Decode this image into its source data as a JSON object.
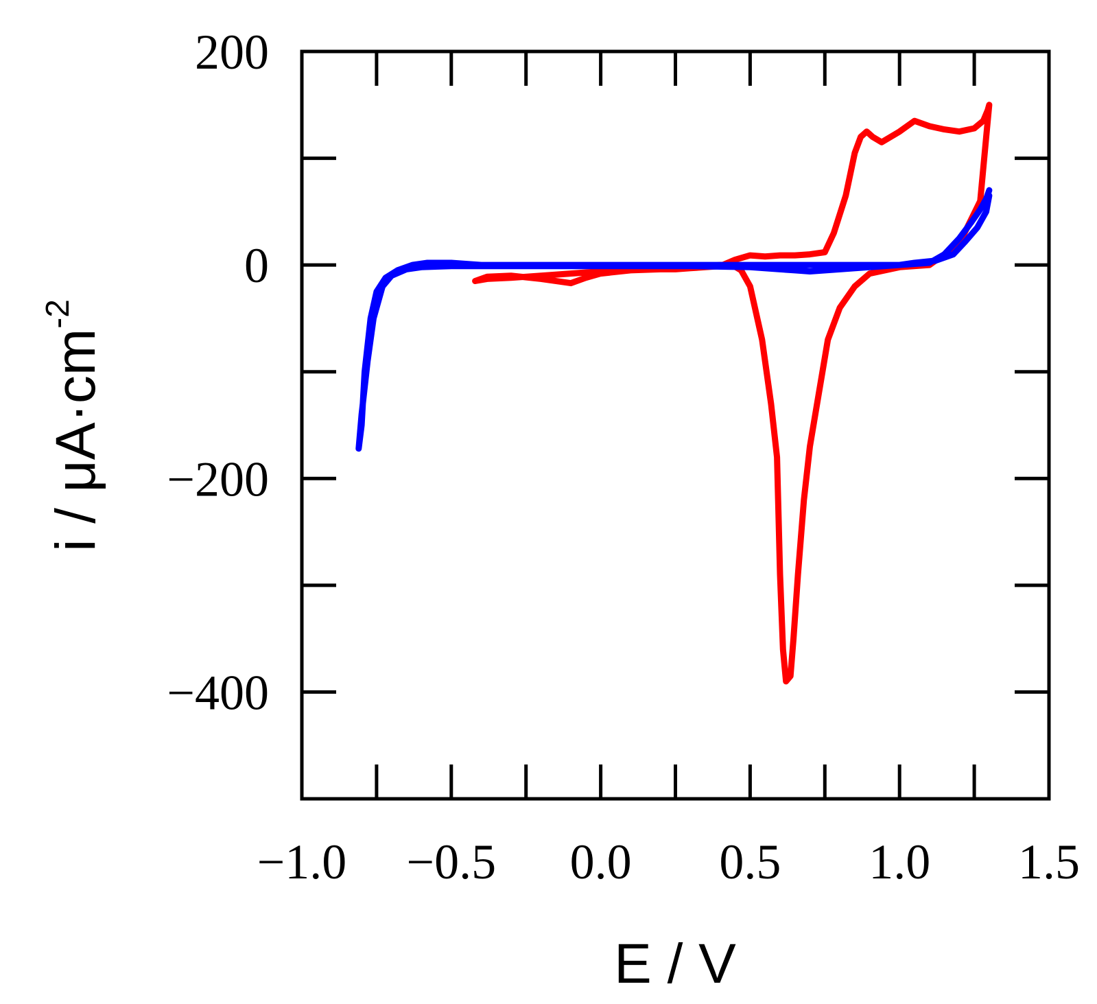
{
  "chart_data": {
    "type": "line",
    "title": "",
    "xlabel": "E / V",
    "ylabel": {
      "main": "i / μA·cm",
      "superscript": "-2"
    },
    "xlim": [
      -1.0,
      1.5
    ],
    "ylim": [
      -500,
      200
    ],
    "x_ticks": [
      -1.0,
      -0.75,
      -0.5,
      -0.25,
      0.0,
      0.25,
      0.5,
      0.75,
      1.0,
      1.25,
      1.5
    ],
    "x_tick_labels": [
      "−1.0",
      "−0.5",
      "0.0",
      "0.5",
      "1.0",
      "1.5"
    ],
    "x_tick_label_values": [
      -1.0,
      -0.5,
      0.0,
      0.5,
      1.0,
      1.5
    ],
    "y_ticks": [
      -500,
      -400,
      -300,
      -200,
      -100,
      0,
      100,
      200
    ],
    "y_tick_labels": [
      "200",
      "0",
      "−200",
      "−400"
    ],
    "y_tick_label_values": [
      200,
      0,
      -200,
      -400
    ],
    "grid": false,
    "series": [
      {
        "name": "red",
        "color": "#ff0000",
        "x": [
          -0.42,
          -0.38,
          -0.3,
          -0.2,
          -0.1,
          0.0,
          0.1,
          0.2,
          0.25,
          0.3,
          0.35,
          0.4,
          0.45,
          0.5,
          0.55,
          0.6,
          0.65,
          0.7,
          0.75,
          0.78,
          0.82,
          0.85,
          0.87,
          0.89,
          0.91,
          0.94,
          1.0,
          1.05,
          1.1,
          1.15,
          1.2,
          1.25,
          1.28,
          1.295,
          1.3,
          1.29,
          1.27,
          1.2,
          1.1,
          1.0,
          0.9,
          0.85,
          0.8,
          0.76,
          0.73,
          0.7,
          0.68,
          0.66,
          0.645,
          0.635,
          0.62,
          0.61,
          0.6,
          0.59,
          0.57,
          0.54,
          0.5,
          0.47,
          0.44,
          0.42,
          0.4,
          0.35,
          0.3,
          0.2,
          0.1,
          0.0,
          -0.05,
          -0.1,
          -0.2,
          -0.3,
          -0.38,
          -0.42
        ],
        "y": [
          -15,
          -13,
          -12,
          -10,
          -8,
          -6,
          -5,
          -4,
          -4,
          -3,
          -2,
          -1,
          5,
          9,
          8,
          9,
          9,
          10,
          12,
          30,
          65,
          105,
          120,
          125,
          120,
          115,
          125,
          135,
          130,
          127,
          125,
          128,
          135,
          145,
          150,
          120,
          60,
          20,
          0,
          -2,
          -8,
          -20,
          -40,
          -70,
          -120,
          -170,
          -220,
          -290,
          -350,
          -385,
          -390,
          -360,
          -290,
          -180,
          -130,
          -70,
          -20,
          -5,
          0,
          0,
          0,
          -1,
          -2,
          -3,
          -5,
          -8,
          -12,
          -17,
          -13,
          -10,
          -11,
          -15
        ]
      },
      {
        "name": "blue",
        "color": "#0000ff",
        "x": [
          1.3,
          1.29,
          1.26,
          1.22,
          1.18,
          1.12,
          1.05,
          1.0,
          0.8,
          0.7,
          0.65,
          0.6,
          0.5,
          0.3,
          0.0,
          -0.3,
          -0.5,
          -0.6,
          -0.65,
          -0.7,
          -0.73,
          -0.76,
          -0.78,
          -0.8,
          -0.81,
          -0.8,
          -0.79,
          -0.77,
          -0.75,
          -0.72,
          -0.68,
          -0.63,
          -0.58,
          -0.5,
          -0.4,
          -0.2,
          0.0,
          0.2,
          0.4,
          0.6,
          0.7,
          0.8,
          1.0,
          1.1,
          1.15,
          1.2,
          1.24,
          1.27,
          1.29,
          1.3
        ],
        "y": [
          65,
          50,
          35,
          22,
          10,
          4,
          2,
          0,
          -4,
          -6,
          -5,
          -4,
          -2,
          -1,
          -1,
          -1,
          -1,
          -2,
          -4,
          -10,
          -20,
          -50,
          -90,
          -140,
          -172,
          -150,
          -100,
          -50,
          -25,
          -12,
          -5,
          0,
          2,
          2,
          0,
          0,
          0,
          0,
          0,
          0,
          0,
          0,
          0,
          2,
          10,
          25,
          40,
          52,
          62,
          70
        ]
      }
    ]
  }
}
